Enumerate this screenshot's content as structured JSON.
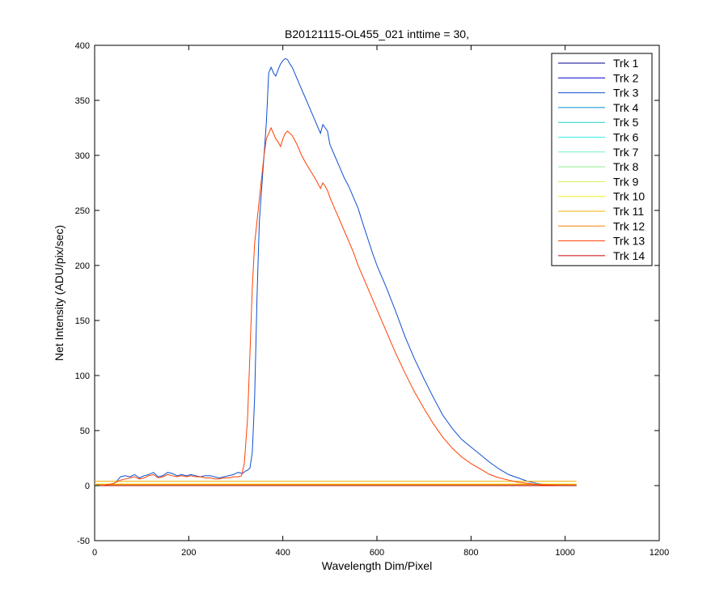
{
  "chart_data": {
    "type": "line",
    "title": "B20121115-OL455_021 inttime = 30,",
    "xlabel": "Wavelength Dim/Pixel",
    "ylabel": "Net Intensity (ADU/pix/sec)",
    "xlim": [
      0,
      1200
    ],
    "ylim": [
      -50,
      400
    ],
    "xticks": [
      0,
      200,
      400,
      600,
      800,
      1000,
      1200
    ],
    "yticks": [
      -50,
      0,
      50,
      100,
      150,
      200,
      250,
      300,
      350,
      400
    ],
    "grid": false,
    "legend_position": "top-right",
    "series": [
      {
        "name": "Trk 1",
        "color": "#00008F",
        "x": [
          0,
          1024
        ],
        "y": [
          0,
          0
        ]
      },
      {
        "name": "Trk 2",
        "color": "#0000CF",
        "x": [
          0,
          1024
        ],
        "y": [
          0,
          0
        ]
      },
      {
        "name": "Trk 3",
        "color": "#0F4FCF",
        "x": [
          0,
          30,
          45,
          55,
          65,
          75,
          85,
          95,
          105,
          115,
          125,
          135,
          145,
          155,
          165,
          175,
          185,
          195,
          205,
          215,
          225,
          235,
          245,
          255,
          265,
          275,
          285,
          295,
          305,
          315,
          320,
          325,
          330,
          335,
          340,
          345,
          350,
          355,
          360,
          365,
          370,
          375,
          380,
          385,
          390,
          395,
          400,
          405,
          410,
          415,
          420,
          430,
          440,
          450,
          460,
          470,
          480,
          485,
          490,
          495,
          500,
          510,
          520,
          530,
          540,
          550,
          560,
          570,
          580,
          590,
          600,
          620,
          640,
          660,
          680,
          700,
          720,
          740,
          760,
          780,
          800,
          820,
          840,
          860,
          880,
          900,
          920,
          940,
          960,
          980,
          1000,
          1024
        ],
        "y": [
          0,
          0,
          3,
          8,
          9,
          8,
          10,
          7,
          9,
          10,
          12,
          8,
          9,
          12,
          11,
          9,
          10,
          9,
          10,
          9,
          8,
          9,
          9,
          8,
          7,
          8,
          9,
          10,
          12,
          11,
          13,
          14,
          16,
          30,
          80,
          170,
          240,
          270,
          300,
          330,
          375,
          380,
          375,
          372,
          378,
          383,
          386,
          388,
          387,
          383,
          380,
          370,
          360,
          350,
          340,
          330,
          320,
          328,
          325,
          322,
          310,
          300,
          290,
          280,
          272,
          262,
          252,
          238,
          225,
          212,
          200,
          180,
          158,
          135,
          115,
          97,
          80,
          64,
          52,
          42,
          35,
          28,
          21,
          15,
          10,
          7,
          4,
          2,
          1,
          0.5,
          0.2,
          0
        ]
      },
      {
        "name": "Trk 4",
        "color": "#008FCF",
        "x": [
          0,
          1024
        ],
        "y": [
          0.5,
          0.5
        ]
      },
      {
        "name": "Trk 5",
        "color": "#1FCFCF",
        "x": [
          0,
          1024
        ],
        "y": [
          0.5,
          0.5
        ]
      },
      {
        "name": "Trk 6",
        "color": "#3FEFEF",
        "x": [
          0,
          1024
        ],
        "y": [
          0.5,
          0.5
        ]
      },
      {
        "name": "Trk 7",
        "color": "#6FF0D0",
        "x": [
          0,
          1024
        ],
        "y": [
          0.6,
          0.6
        ]
      },
      {
        "name": "Trk 8",
        "color": "#8FEF8F",
        "x": [
          0,
          1024
        ],
        "y": [
          0.8,
          0.8
        ]
      },
      {
        "name": "Trk 9",
        "color": "#CFEF4F",
        "x": [
          0,
          1024
        ],
        "y": [
          1,
          1
        ]
      },
      {
        "name": "Trk 10",
        "color": "#EFEF1F",
        "x": [
          0,
          1024
        ],
        "y": [
          1.5,
          1.5
        ]
      },
      {
        "name": "Trk 11",
        "color": "#EFAF00",
        "x": [
          0,
          1024
        ],
        "y": [
          4,
          4
        ]
      },
      {
        "name": "Trk 12",
        "color": "#FF8000",
        "x": [
          0,
          1024
        ],
        "y": [
          1,
          1
        ]
      },
      {
        "name": "Trk 13",
        "color": "#FF3F00",
        "x": [
          0,
          20,
          40,
          55,
          65,
          75,
          85,
          95,
          105,
          115,
          125,
          135,
          145,
          155,
          165,
          175,
          185,
          195,
          205,
          215,
          225,
          235,
          245,
          255,
          265,
          275,
          285,
          295,
          305,
          312,
          318,
          325,
          330,
          335,
          340,
          345,
          350,
          355,
          360,
          365,
          370,
          375,
          380,
          385,
          390,
          395,
          400,
          405,
          410,
          415,
          420,
          430,
          440,
          450,
          460,
          470,
          480,
          485,
          490,
          495,
          500,
          510,
          520,
          530,
          540,
          550,
          560,
          570,
          580,
          590,
          600,
          620,
          640,
          660,
          680,
          700,
          720,
          740,
          760,
          780,
          800,
          820,
          840,
          860,
          880,
          900,
          920,
          940,
          960,
          980,
          1000,
          1024
        ],
        "y": [
          0,
          0,
          2,
          5,
          6,
          7,
          8,
          6,
          7,
          9,
          10,
          7,
          8,
          10,
          9,
          8,
          9,
          8,
          9,
          8,
          8,
          7,
          7,
          6,
          6,
          7,
          7,
          8,
          8,
          9,
          20,
          60,
          120,
          180,
          220,
          240,
          260,
          280,
          300,
          315,
          320,
          325,
          320,
          315,
          312,
          308,
          315,
          320,
          322,
          320,
          318,
          310,
          300,
          292,
          285,
          278,
          270,
          275,
          272,
          268,
          262,
          252,
          242,
          232,
          222,
          212,
          200,
          190,
          180,
          170,
          160,
          140,
          120,
          102,
          85,
          70,
          56,
          44,
          34,
          26,
          20,
          15,
          10,
          7,
          5,
          3,
          2,
          1,
          0.5,
          0.2,
          0.1,
          0
        ]
      },
      {
        "name": "Trk 14",
        "color": "#CF0000",
        "x": [
          0,
          1024
        ],
        "y": [
          0,
          0
        ]
      }
    ]
  }
}
